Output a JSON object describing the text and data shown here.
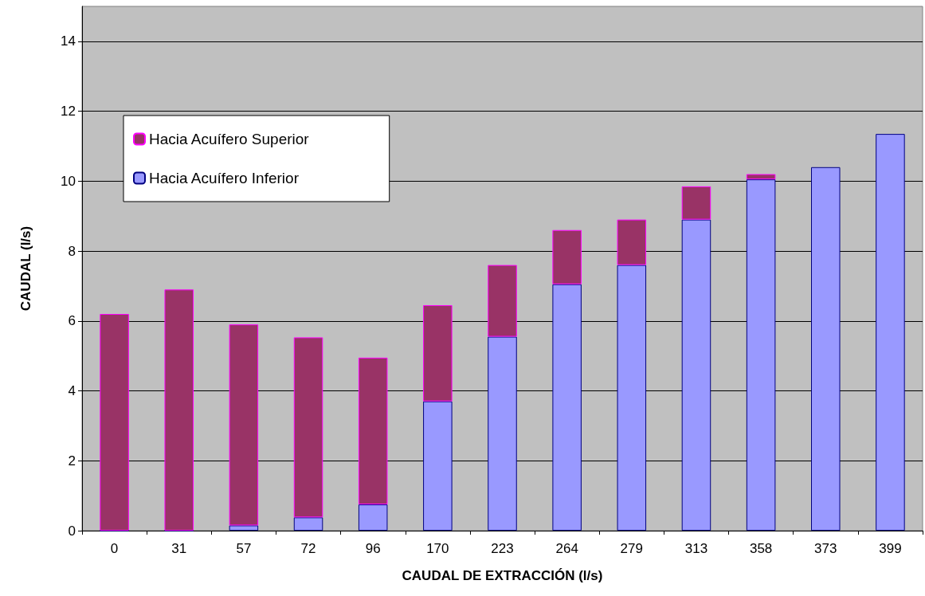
{
  "chart_data": {
    "type": "bar",
    "stacked": true,
    "xlabel": "CAUDAL DE EXTRACCIÓN (l/s)",
    "ylabel": "CAUDAL (l/s)",
    "categories": [
      "0",
      "31",
      "57",
      "72",
      "96",
      "170",
      "223",
      "264",
      "279",
      "313",
      "358",
      "373",
      "399"
    ],
    "series": [
      {
        "name": "Hacia Acuífero Inferior",
        "color": "#9999ff",
        "values": [
          0,
          0,
          0.15,
          0.38,
          0.75,
          3.7,
          5.55,
          7.05,
          7.6,
          8.9,
          10.05,
          10.4,
          11.35
        ]
      },
      {
        "name": "Hacia Acuífero Superior",
        "color": "#993366",
        "values": [
          6.2,
          6.9,
          5.75,
          5.15,
          4.2,
          2.75,
          2.05,
          1.55,
          1.3,
          0.95,
          0.15,
          null,
          null
        ]
      }
    ],
    "ylim": [
      0,
      15
    ],
    "yticks": [
      0,
      2,
      4,
      6,
      8,
      10,
      12,
      14
    ],
    "grid": "y",
    "legend": "top left"
  }
}
